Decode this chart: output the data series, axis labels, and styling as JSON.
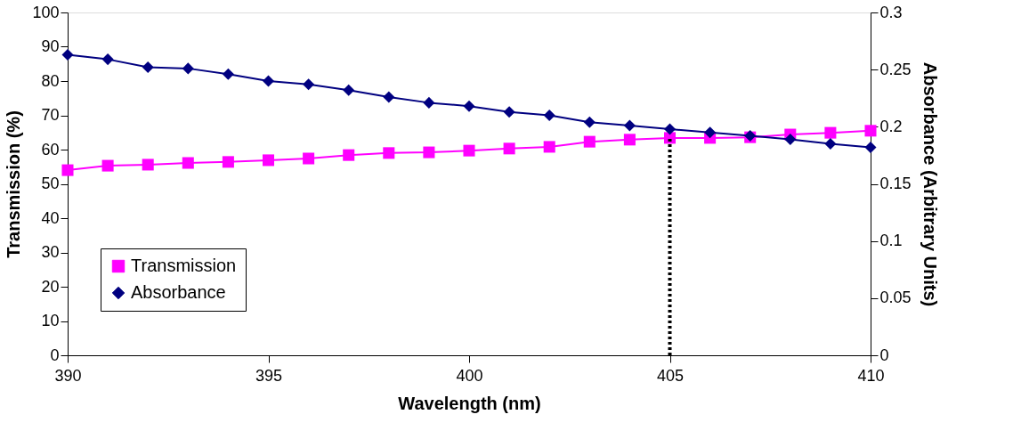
{
  "chart_data": {
    "type": "line",
    "xlabel": "Wavelength (nm)",
    "ylabel": "Transmission (%)",
    "y2label": "Absorbance (Arbitrary Units)",
    "x": [
      390,
      391,
      392,
      393,
      394,
      395,
      396,
      397,
      398,
      399,
      400,
      401,
      402,
      403,
      404,
      405,
      406,
      407,
      408,
      409,
      410
    ],
    "series": [
      {
        "name": "Transmission",
        "color": "#ff00ff",
        "marker": "square",
        "values": [
          54,
          55.3,
          55.6,
          56.1,
          56.4,
          56.9,
          57.4,
          58.4,
          59,
          59.2,
          59.7,
          60.3,
          60.8,
          62.3,
          62.9,
          63.4,
          63.4,
          63.6,
          64.4,
          64.9,
          65.5
        ]
      },
      {
        "name": "Absorbance",
        "color": "#000080",
        "marker": "diamond",
        "axis": "y2",
        "values": [
          0.263,
          0.259,
          0.252,
          0.251,
          0.246,
          0.24,
          0.237,
          0.232,
          0.226,
          0.221,
          0.218,
          0.213,
          0.21,
          0.204,
          0.201,
          0.198,
          0.195,
          0.192,
          0.189,
          0.185,
          0.182
        ]
      }
    ],
    "xlim": [
      390,
      410
    ],
    "xticks": [
      390,
      395,
      400,
      405,
      410
    ],
    "ylim": [
      0,
      100
    ],
    "yticks": [
      0,
      10,
      20,
      30,
      40,
      50,
      60,
      70,
      80,
      90,
      100
    ],
    "y2lim": [
      0,
      0.3
    ],
    "y2ticks": [
      0,
      0.05,
      0.1,
      0.15,
      0.2,
      0.25,
      0.3
    ],
    "ref_lines": [
      {
        "axis": "x",
        "value": 405,
        "line_style": "dotted",
        "color": "#000000"
      }
    ],
    "legend": "bottom left",
    "grid": false,
    "line_style": "solid"
  }
}
